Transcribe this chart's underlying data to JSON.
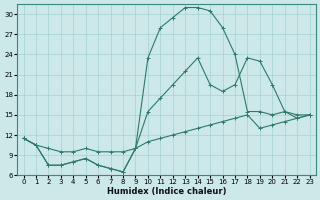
{
  "title": "",
  "xlabel": "Humidex (Indice chaleur)",
  "ylabel": "",
  "background_color": "#cce8e8",
  "line_color": "#2d7a6a",
  "xlim": [
    -0.5,
    23.5
  ],
  "ylim": [
    6,
    31.5
  ],
  "yticks": [
    6,
    9,
    12,
    15,
    18,
    21,
    24,
    27,
    30
  ],
  "xticks": [
    0,
    1,
    2,
    3,
    4,
    5,
    6,
    7,
    8,
    9,
    10,
    11,
    12,
    13,
    14,
    15,
    16,
    17,
    18,
    19,
    20,
    21,
    22,
    23
  ],
  "curve1_x": [
    0,
    1,
    2,
    3,
    4,
    5,
    6,
    7,
    8,
    9,
    10,
    11,
    12,
    13,
    14,
    15,
    16,
    17,
    18,
    19,
    20,
    21,
    22,
    23
  ],
  "curve1_y": [
    11.5,
    10.5,
    7.5,
    7.5,
    8.0,
    8.5,
    7.5,
    7.0,
    6.5,
    10.0,
    23.5,
    28.0,
    29.5,
    31.0,
    31.0,
    30.5,
    28.0,
    24.0,
    15.5,
    15.5,
    15.0,
    15.5,
    15.0,
    15.0
  ],
  "curve2_x": [
    0,
    1,
    2,
    3,
    4,
    5,
    6,
    7,
    8,
    9,
    10,
    11,
    12,
    13,
    14,
    15,
    16,
    17,
    18,
    19,
    20,
    21,
    22,
    23
  ],
  "curve2_y": [
    11.5,
    10.5,
    7.5,
    7.5,
    8.0,
    8.5,
    7.5,
    7.0,
    6.5,
    10.0,
    15.5,
    17.5,
    19.5,
    21.5,
    23.5,
    19.5,
    18.5,
    19.5,
    23.5,
    23.0,
    19.5,
    15.5,
    14.5,
    15.0
  ],
  "curve3_x": [
    0,
    1,
    2,
    3,
    4,
    5,
    6,
    7,
    8,
    9,
    10,
    11,
    12,
    13,
    14,
    15,
    16,
    17,
    18,
    19,
    20,
    21,
    22,
    23
  ],
  "curve3_y": [
    11.5,
    10.5,
    10.0,
    9.5,
    9.5,
    10.0,
    9.5,
    9.5,
    9.5,
    10.0,
    11.0,
    11.5,
    12.0,
    12.5,
    13.0,
    13.5,
    14.0,
    14.5,
    15.0,
    13.0,
    13.5,
    14.0,
    14.5,
    15.0
  ]
}
